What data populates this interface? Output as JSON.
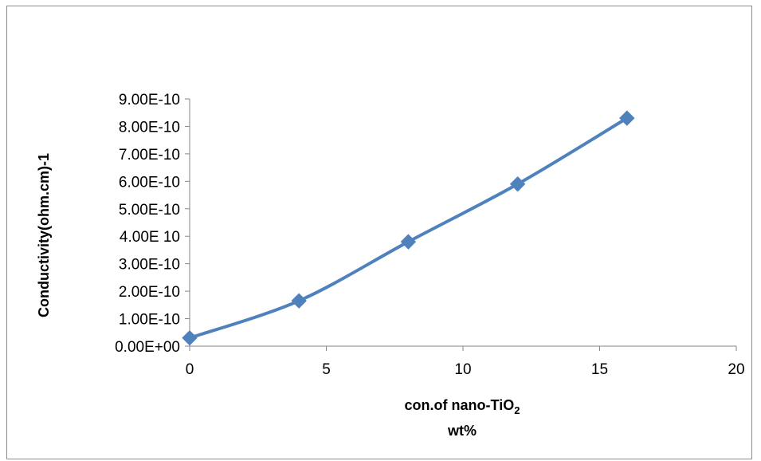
{
  "chart_data": {
    "type": "line",
    "x": [
      0,
      4,
      8,
      12,
      16
    ],
    "series": [
      {
        "values": [
          3e-11,
          1.65e-10,
          3.8e-10,
          5.9e-10,
          8.3e-10
        ]
      }
    ],
    "xlabel": "con.of nano-TiO",
    "xlabel_subscript": "2",
    "xlabel_line2": "wt%",
    "ylabel": "Conductivity(ohm.cm)-1",
    "xlim": [
      0,
      20
    ],
    "ylim": [
      0,
      9e-10
    ],
    "x_ticks": [
      "0",
      "5",
      "10",
      "15",
      "20"
    ],
    "y_ticks": [
      "0.00E+00",
      "1.00E-10",
      "2.00E-10",
      "3.00E-10",
      "4.00E 10",
      "5.00E-10",
      "6.00E-10",
      "7.00E-10",
      "8.00E-10",
      "9.00E-10"
    ],
    "grid": false,
    "legend": "none",
    "marker": "diamond",
    "line_style": "smooth",
    "color": "#4f81bd"
  }
}
